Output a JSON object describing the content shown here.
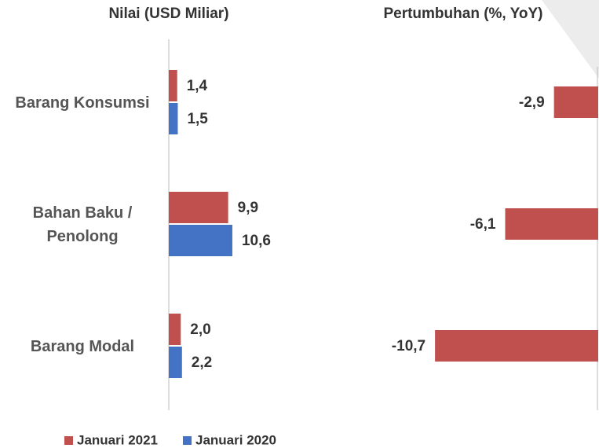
{
  "chart_data": [
    {
      "type": "hbar",
      "title": "Nilai (USD Miliar)",
      "categories": [
        "Barang Konsumsi",
        "Bahan Baku / Penolong",
        "Barang Modal"
      ],
      "series": [
        {
          "name": "Januari 2021",
          "color": "#c0504d",
          "values": [
            1.4,
            9.9,
            2.0
          ],
          "value_labels": [
            "1,4",
            "9,9",
            "2,0"
          ]
        },
        {
          "name": "Januari 2020",
          "color": "#4472c4",
          "values": [
            1.5,
            10.6,
            2.2
          ],
          "value_labels": [
            "1,5",
            "10,6",
            "2,2"
          ]
        }
      ],
      "xlim": [
        0,
        36
      ]
    },
    {
      "type": "hbar",
      "title": "Pertumbuhan (%, YoY)",
      "series": [
        {
          "name": "Januari 2021",
          "color": "#c0504d",
          "values": [
            -2.9,
            -6.1,
            -10.7
          ],
          "value_labels": [
            "-2,9",
            "-6,1",
            "-10,7"
          ]
        }
      ],
      "xlim": [
        -14,
        0
      ]
    }
  ]
}
